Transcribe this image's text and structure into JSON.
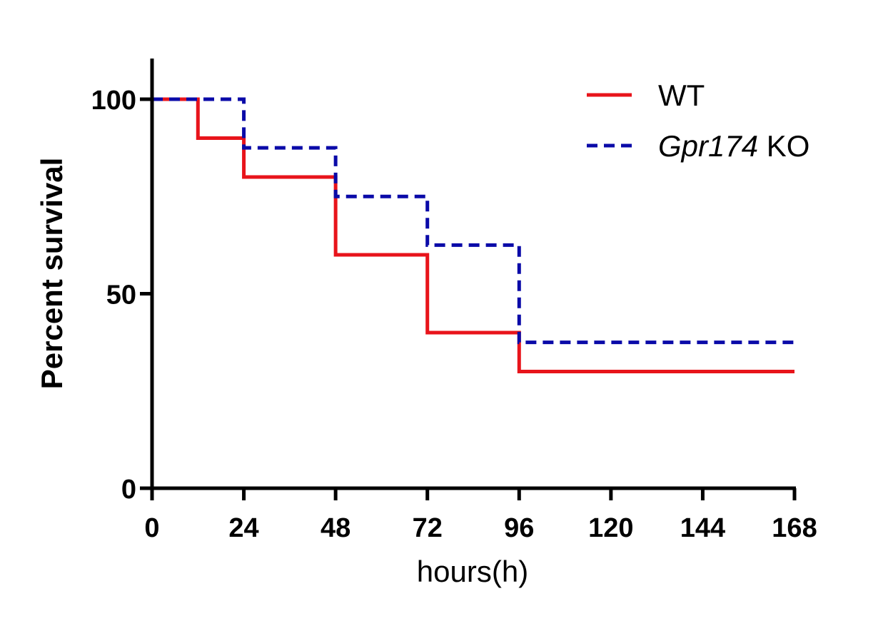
{
  "chart_data": {
    "type": "line",
    "subtype": "kaplan-meier-step",
    "title": "",
    "xlabel": "hours(h)",
    "ylabel": "Percent survival",
    "xlim": [
      0,
      168
    ],
    "ylim": [
      0,
      110
    ],
    "x_ticks": [
      0,
      24,
      48,
      72,
      96,
      120,
      144,
      168
    ],
    "x_tick_labels": [
      "0",
      "24",
      "48",
      "72",
      "96",
      "120",
      "144",
      "168"
    ],
    "y_ticks": [
      0,
      50,
      100
    ],
    "y_tick_labels": [
      "0",
      "50",
      "100"
    ],
    "grid": false,
    "legend_position": "top-right",
    "series": [
      {
        "name": "WT",
        "legend_parts": [
          {
            "text": "WT",
            "italic": false
          }
        ],
        "color": "#e8141b",
        "style": "solid",
        "points": [
          {
            "x": 0,
            "y": 100
          },
          {
            "x": 12,
            "y": 90
          },
          {
            "x": 24,
            "y": 80
          },
          {
            "x": 48,
            "y": 60
          },
          {
            "x": 72,
            "y": 40
          },
          {
            "x": 96,
            "y": 30
          },
          {
            "x": 168,
            "y": 30
          }
        ]
      },
      {
        "name": "Gpr174 KO",
        "legend_parts": [
          {
            "text": "Gpr174",
            "italic": true
          },
          {
            "text": " KO",
            "italic": false
          }
        ],
        "color": "#0a0aa8",
        "style": "dashed",
        "points": [
          {
            "x": 0,
            "y": 100
          },
          {
            "x": 24,
            "y": 87.5
          },
          {
            "x": 48,
            "y": 75
          },
          {
            "x": 72,
            "y": 62.5
          },
          {
            "x": 96,
            "y": 37.5
          },
          {
            "x": 168,
            "y": 37.5
          }
        ]
      }
    ]
  }
}
